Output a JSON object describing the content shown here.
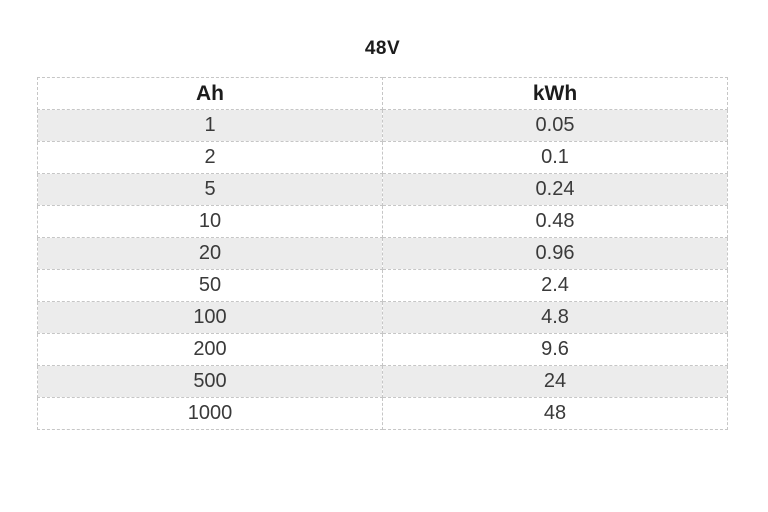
{
  "title": "48V",
  "chart_data": {
    "type": "table",
    "title": "48V",
    "columns": [
      "Ah",
      "kWh"
    ],
    "rows": [
      [
        "1",
        "0.05"
      ],
      [
        "2",
        "0.1"
      ],
      [
        "5",
        "0.24"
      ],
      [
        "10",
        "0.48"
      ],
      [
        "20",
        "0.96"
      ],
      [
        "50",
        "2.4"
      ],
      [
        "100",
        "4.8"
      ],
      [
        "200",
        "9.6"
      ],
      [
        "500",
        "24"
      ],
      [
        "1000",
        "48"
      ]
    ],
    "layout": {
      "header_bold": true,
      "alternating_row_color": "#ececec",
      "border_style": "dotted",
      "border_color": "#c6c6c6",
      "text_align": "center"
    }
  }
}
